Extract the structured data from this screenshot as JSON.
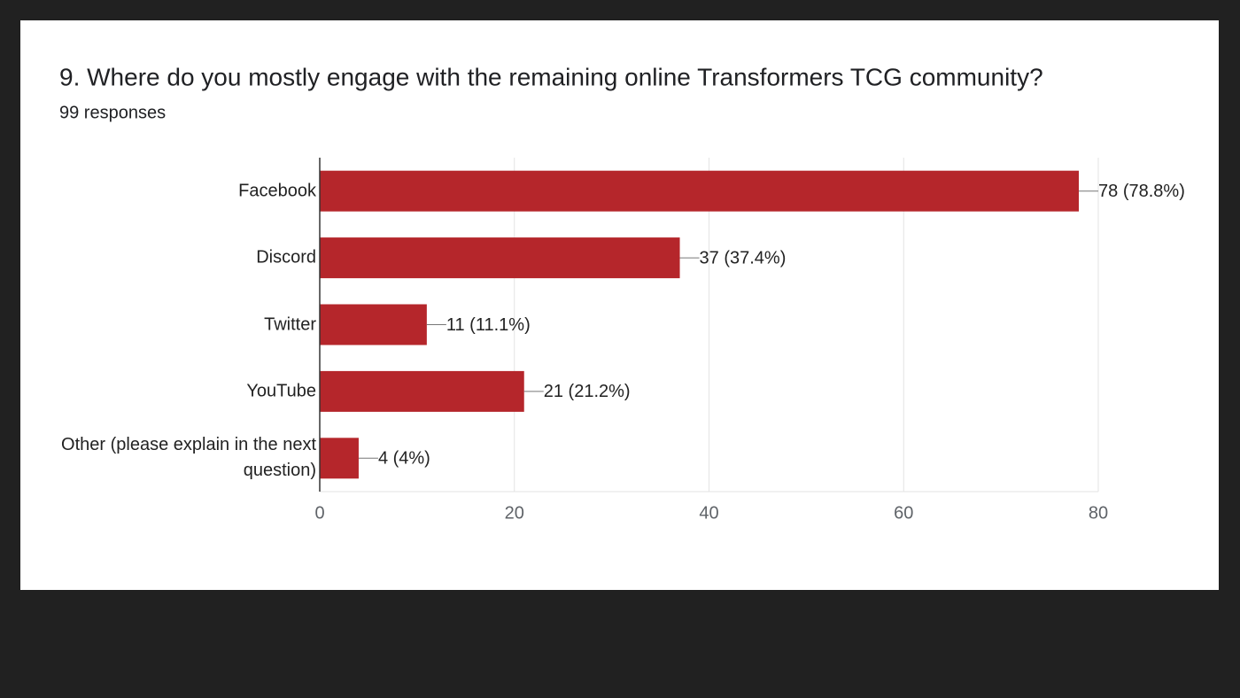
{
  "chart_data": {
    "type": "bar",
    "orientation": "horizontal",
    "title": "9. Where do you mostly engage with the remaining online Transformers TCG community?",
    "subtitle": "99 responses",
    "categories": [
      "Facebook",
      "Discord",
      "Twitter",
      "YouTube",
      "Other (please explain in the next question)"
    ],
    "values": [
      78,
      37,
      11,
      21,
      4
    ],
    "value_labels": [
      "78 (78.8%)",
      "37 (37.4%)",
      "11 (11.1%)",
      "21 (21.2%)",
      "4 (4%)"
    ],
    "color": "#b5262b",
    "xlim": [
      0,
      80
    ],
    "xticks": [
      0,
      20,
      40,
      60,
      80
    ],
    "grid": true
  }
}
